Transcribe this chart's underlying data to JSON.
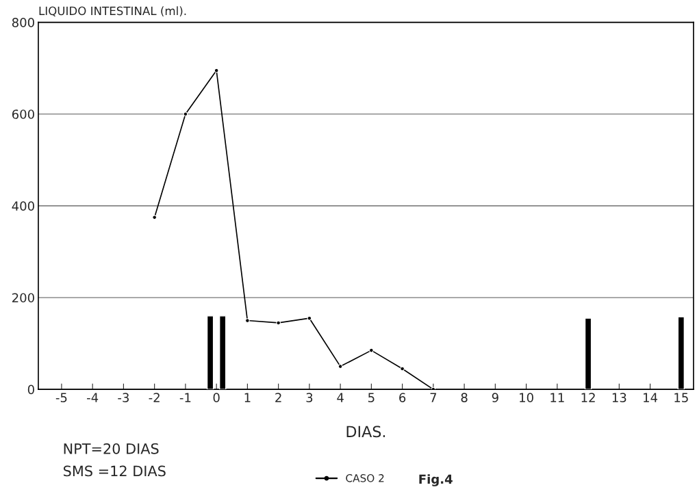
{
  "chart_data": {
    "type": "line",
    "ylabel": "LIQUIDO INTESTINAL (ml).",
    "xlabel": "DIAS.",
    "xlim": [
      -5.75,
      15.4
    ],
    "xticks": [
      -5,
      -4,
      -3,
      -2,
      -1,
      0,
      1,
      2,
      3,
      4,
      5,
      6,
      7,
      8,
      9,
      10,
      11,
      12,
      13,
      14,
      15
    ],
    "ylim": [
      0,
      800
    ],
    "yticks": [
      0,
      200,
      400,
      600,
      800
    ],
    "grid": "y",
    "legend": "bottom",
    "series": [
      {
        "name": "CASO 2",
        "color": "#000000",
        "marker": "circle",
        "line_style": "solid",
        "x": [
          -2,
          -1,
          0,
          1,
          2,
          3,
          4,
          5,
          6,
          7
        ],
        "values": [
          375,
          600,
          695,
          150,
          145,
          155,
          50,
          85,
          45,
          0
        ]
      },
      {
        "type": "bar",
        "color": "#000000",
        "x": [
          -0.2,
          0.2,
          12,
          15
        ],
        "values": [
          160,
          160,
          155,
          158
        ]
      }
    ],
    "annotations": [
      "NPT=20 DIAS",
      "SMS =12 DIAS",
      "Fig.4"
    ]
  }
}
